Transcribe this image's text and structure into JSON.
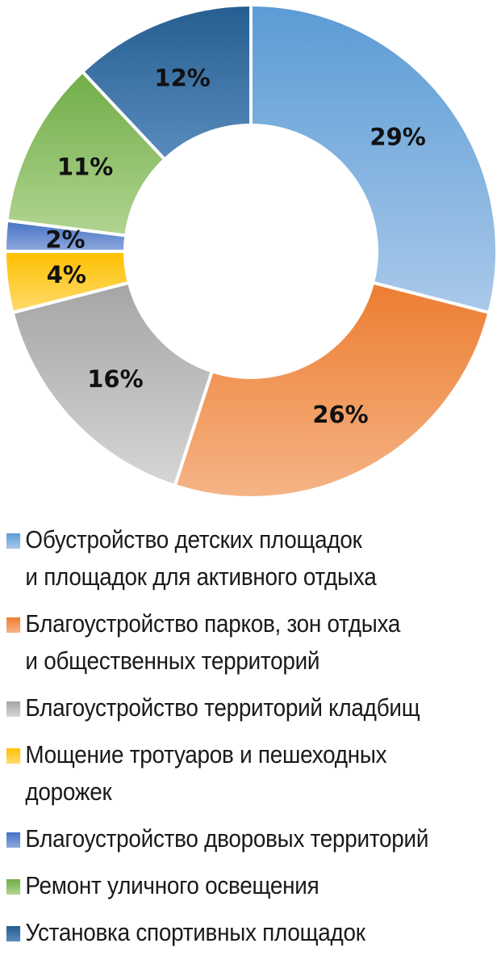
{
  "chart_data": {
    "type": "pie",
    "donut": true,
    "categories": [
      "Обустройство детских площадок и площадок для активного отдыха",
      "Благоустройство парков, зон отдыха и общественных территорий",
      "Благоустройство территорий кладбищ",
      "Мощение тротуаров и пешеходных дорожек",
      "Благоустройство дворовых территорий",
      "Ремонт уличного освещения",
      "Установка спортивных площадок"
    ],
    "values": [
      29,
      26,
      16,
      4,
      2,
      11,
      12
    ],
    "labels": [
      "29%",
      "26%",
      "16%",
      "4%",
      "2%",
      "11%",
      "12%"
    ],
    "colors": [
      "#5b9bd5",
      "#ed7d31",
      "#a5a5a5",
      "#ffc000",
      "#4472c4",
      "#70ad47",
      "#255e91"
    ],
    "colors_light": [
      "#a9c9ea",
      "#f5b486",
      "#d6d6d6",
      "#ffdb6e",
      "#8fa8dd",
      "#b1d492",
      "#5a8bbd"
    ],
    "legend_position": "bottom",
    "start_angle": "12 o'clock",
    "direction": "clockwise"
  },
  "legend": {
    "items": [
      {
        "lines": [
          "Обустройство детских площадок",
          "и площадок для активного отдыха"
        ]
      },
      {
        "lines": [
          "Благоустройство парков, зон отдыха",
          "и общественных территорий"
        ]
      },
      {
        "lines": [
          "Благоустройство территорий кладбищ"
        ]
      },
      {
        "lines": [
          "Мощение тротуаров и пешеходных",
          "дорожек"
        ]
      },
      {
        "lines": [
          "Благоустройство дворовых территорий"
        ]
      },
      {
        "lines": [
          "Ремонт уличного освещения"
        ]
      },
      {
        "lines": [
          "Установка спортивных площадок"
        ]
      }
    ]
  }
}
